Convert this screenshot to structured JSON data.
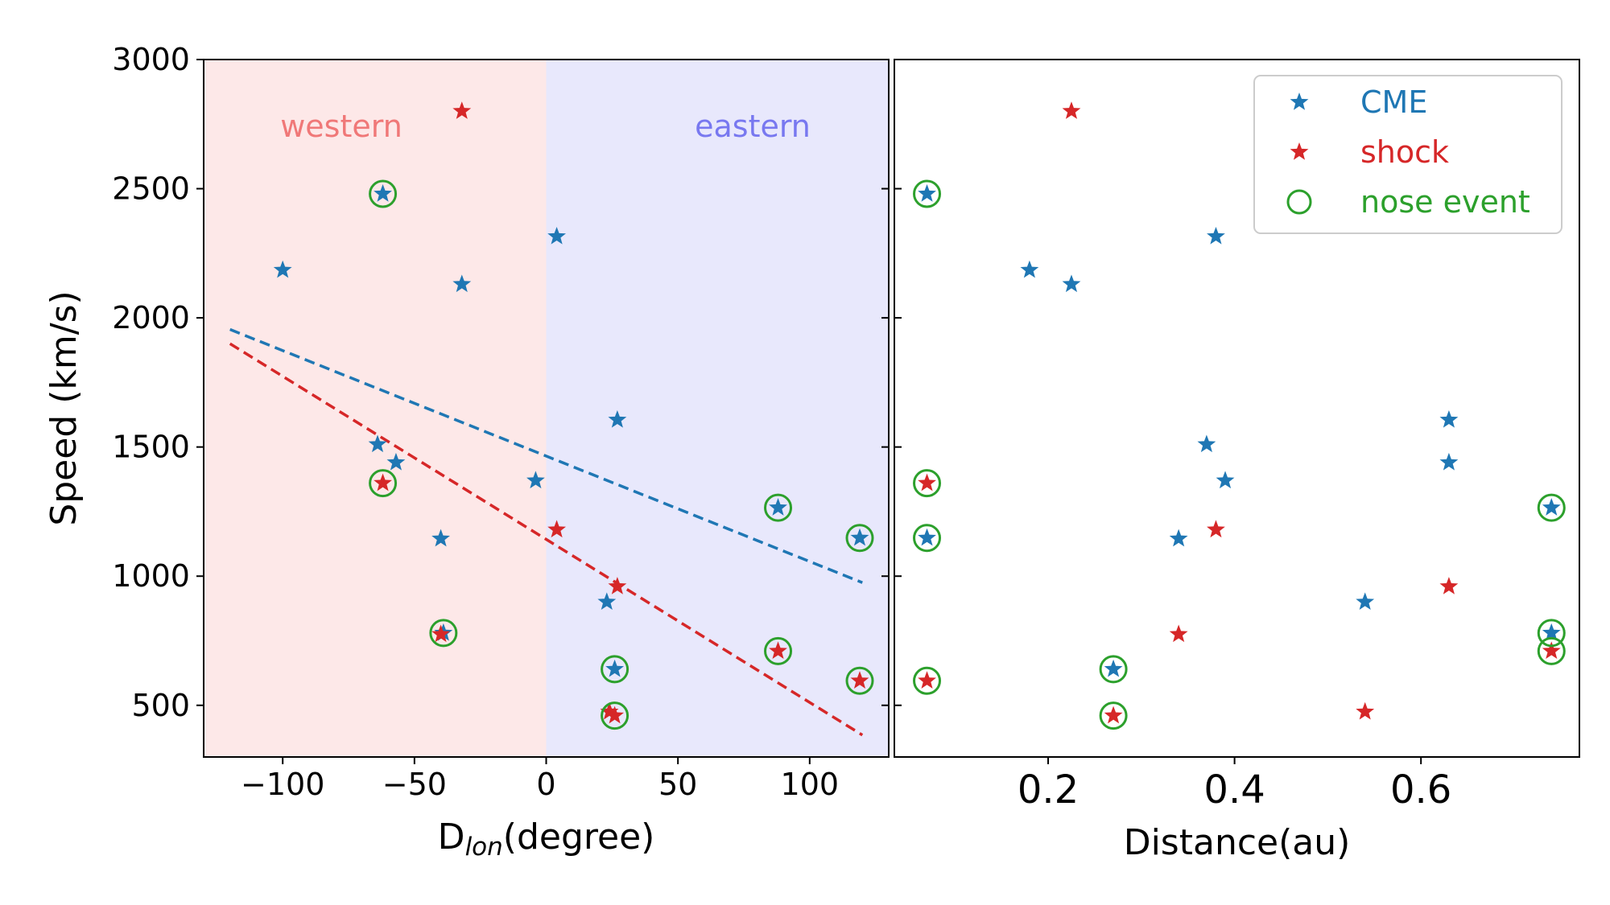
{
  "chart_data": [
    {
      "type": "scatter",
      "panel": "left",
      "xlabel_main": "D",
      "xlabel_sub": "lon",
      "xlabel_rest": "(degree)",
      "ylabel": "Speed (km/s)",
      "xlim": [
        -130,
        130
      ],
      "ylim": [
        300,
        3000
      ],
      "xticks": [
        -100,
        -50,
        0,
        50,
        100
      ],
      "xtick_labels": [
        "−100",
        "−50",
        "0",
        "50",
        "100"
      ],
      "yticks": [
        500,
        1000,
        1500,
        2000,
        2500,
        3000
      ],
      "ytick_labels": [
        "500",
        "1000",
        "1500",
        "2000",
        "2500",
        "3000"
      ],
      "regions": [
        {
          "name": "western",
          "x_range": [
            -130,
            0
          ],
          "color": "#fde8e8",
          "label_color": "#f07878"
        },
        {
          "name": "eastern",
          "x_range": [
            0,
            130
          ],
          "color": "#e8e8fc",
          "label_color": "#7878f0"
        }
      ],
      "series": [
        {
          "name": "CME",
          "color": "#1f77b4",
          "marker": "star",
          "points": [
            [
              -100,
              2185
            ],
            [
              -62,
              2480
            ],
            [
              -32,
              2130
            ],
            [
              4,
              2315
            ],
            [
              27,
              1605
            ],
            [
              -64,
              1510
            ],
            [
              -57,
              1440
            ],
            [
              -4,
              1370
            ],
            [
              -40,
              1145
            ],
            [
              23,
              900
            ],
            [
              -39,
              780
            ],
            [
              26,
              640
            ],
            [
              88,
              1265
            ],
            [
              119,
              1148
            ]
          ]
        },
        {
          "name": "shock",
          "color": "#d62728",
          "marker": "star",
          "points": [
            [
              -32,
              2800
            ],
            [
              -62,
              1360
            ],
            [
              4,
              1180
            ],
            [
              27,
              960
            ],
            [
              -40,
              775
            ],
            [
              88,
              710
            ],
            [
              119,
              595
            ],
            [
              24,
              475
            ],
            [
              26,
              460
            ]
          ]
        },
        {
          "name": "nose event",
          "color": "#2ca02c",
          "marker": "open-circle",
          "points": [
            [
              -62,
              2480
            ],
            [
              -62,
              1360
            ],
            [
              -39,
              780
            ],
            [
              26,
              640
            ],
            [
              26,
              460
            ],
            [
              88,
              1265
            ],
            [
              88,
              710
            ],
            [
              119,
              1148
            ],
            [
              119,
              595
            ]
          ]
        }
      ],
      "fit_lines": [
        {
          "name": "CME fit",
          "color": "#1f77b4",
          "style": "dashed",
          "x": [
            -120,
            120
          ],
          "y": [
            1955,
            975
          ]
        },
        {
          "name": "shock fit",
          "color": "#d62728",
          "style": "dashed",
          "x": [
            -120,
            120
          ],
          "y": [
            1900,
            385
          ]
        }
      ]
    },
    {
      "type": "scatter",
      "panel": "right",
      "xlabel": "Distance(au)",
      "ylim": [
        300,
        3000
      ],
      "xlim": [
        0.035,
        0.77
      ],
      "xticks": [
        0.2,
        0.4,
        0.6
      ],
      "xtick_labels": [
        "0.2",
        "0.4",
        "0.6"
      ],
      "series": [
        {
          "name": "CME",
          "color": "#1f77b4",
          "marker": "star",
          "points": [
            [
              0.07,
              2480
            ],
            [
              0.18,
              2185
            ],
            [
              0.225,
              2130
            ],
            [
              0.38,
              2315
            ],
            [
              0.63,
              1605
            ],
            [
              0.63,
              1440
            ],
            [
              0.37,
              1510
            ],
            [
              0.39,
              1370
            ],
            [
              0.34,
              1145
            ],
            [
              0.07,
              1148
            ],
            [
              0.54,
              900
            ],
            [
              0.27,
              640
            ],
            [
              0.74,
              1265
            ],
            [
              0.74,
              780
            ]
          ]
        },
        {
          "name": "shock",
          "color": "#d62728",
          "marker": "star",
          "points": [
            [
              0.225,
              2800
            ],
            [
              0.07,
              1360
            ],
            [
              0.38,
              1180
            ],
            [
              0.63,
              960
            ],
            [
              0.34,
              775
            ],
            [
              0.07,
              595
            ],
            [
              0.27,
              460
            ],
            [
              0.54,
              475
            ],
            [
              0.74,
              710
            ]
          ]
        },
        {
          "name": "nose event",
          "color": "#2ca02c",
          "marker": "open-circle",
          "points": [
            [
              0.07,
              2480
            ],
            [
              0.07,
              1360
            ],
            [
              0.07,
              1148
            ],
            [
              0.07,
              595
            ],
            [
              0.27,
              640
            ],
            [
              0.27,
              460
            ],
            [
              0.74,
              1265
            ],
            [
              0.74,
              780
            ],
            [
              0.74,
              710
            ]
          ]
        }
      ],
      "legend": {
        "location": "top-right",
        "entries": [
          {
            "label": "CME",
            "color": "#1f77b4",
            "marker": "star"
          },
          {
            "label": "shock",
            "color": "#d62728",
            "marker": "star"
          },
          {
            "label": "nose event",
            "color": "#2ca02c",
            "marker": "open-circle"
          }
        ]
      }
    }
  ]
}
